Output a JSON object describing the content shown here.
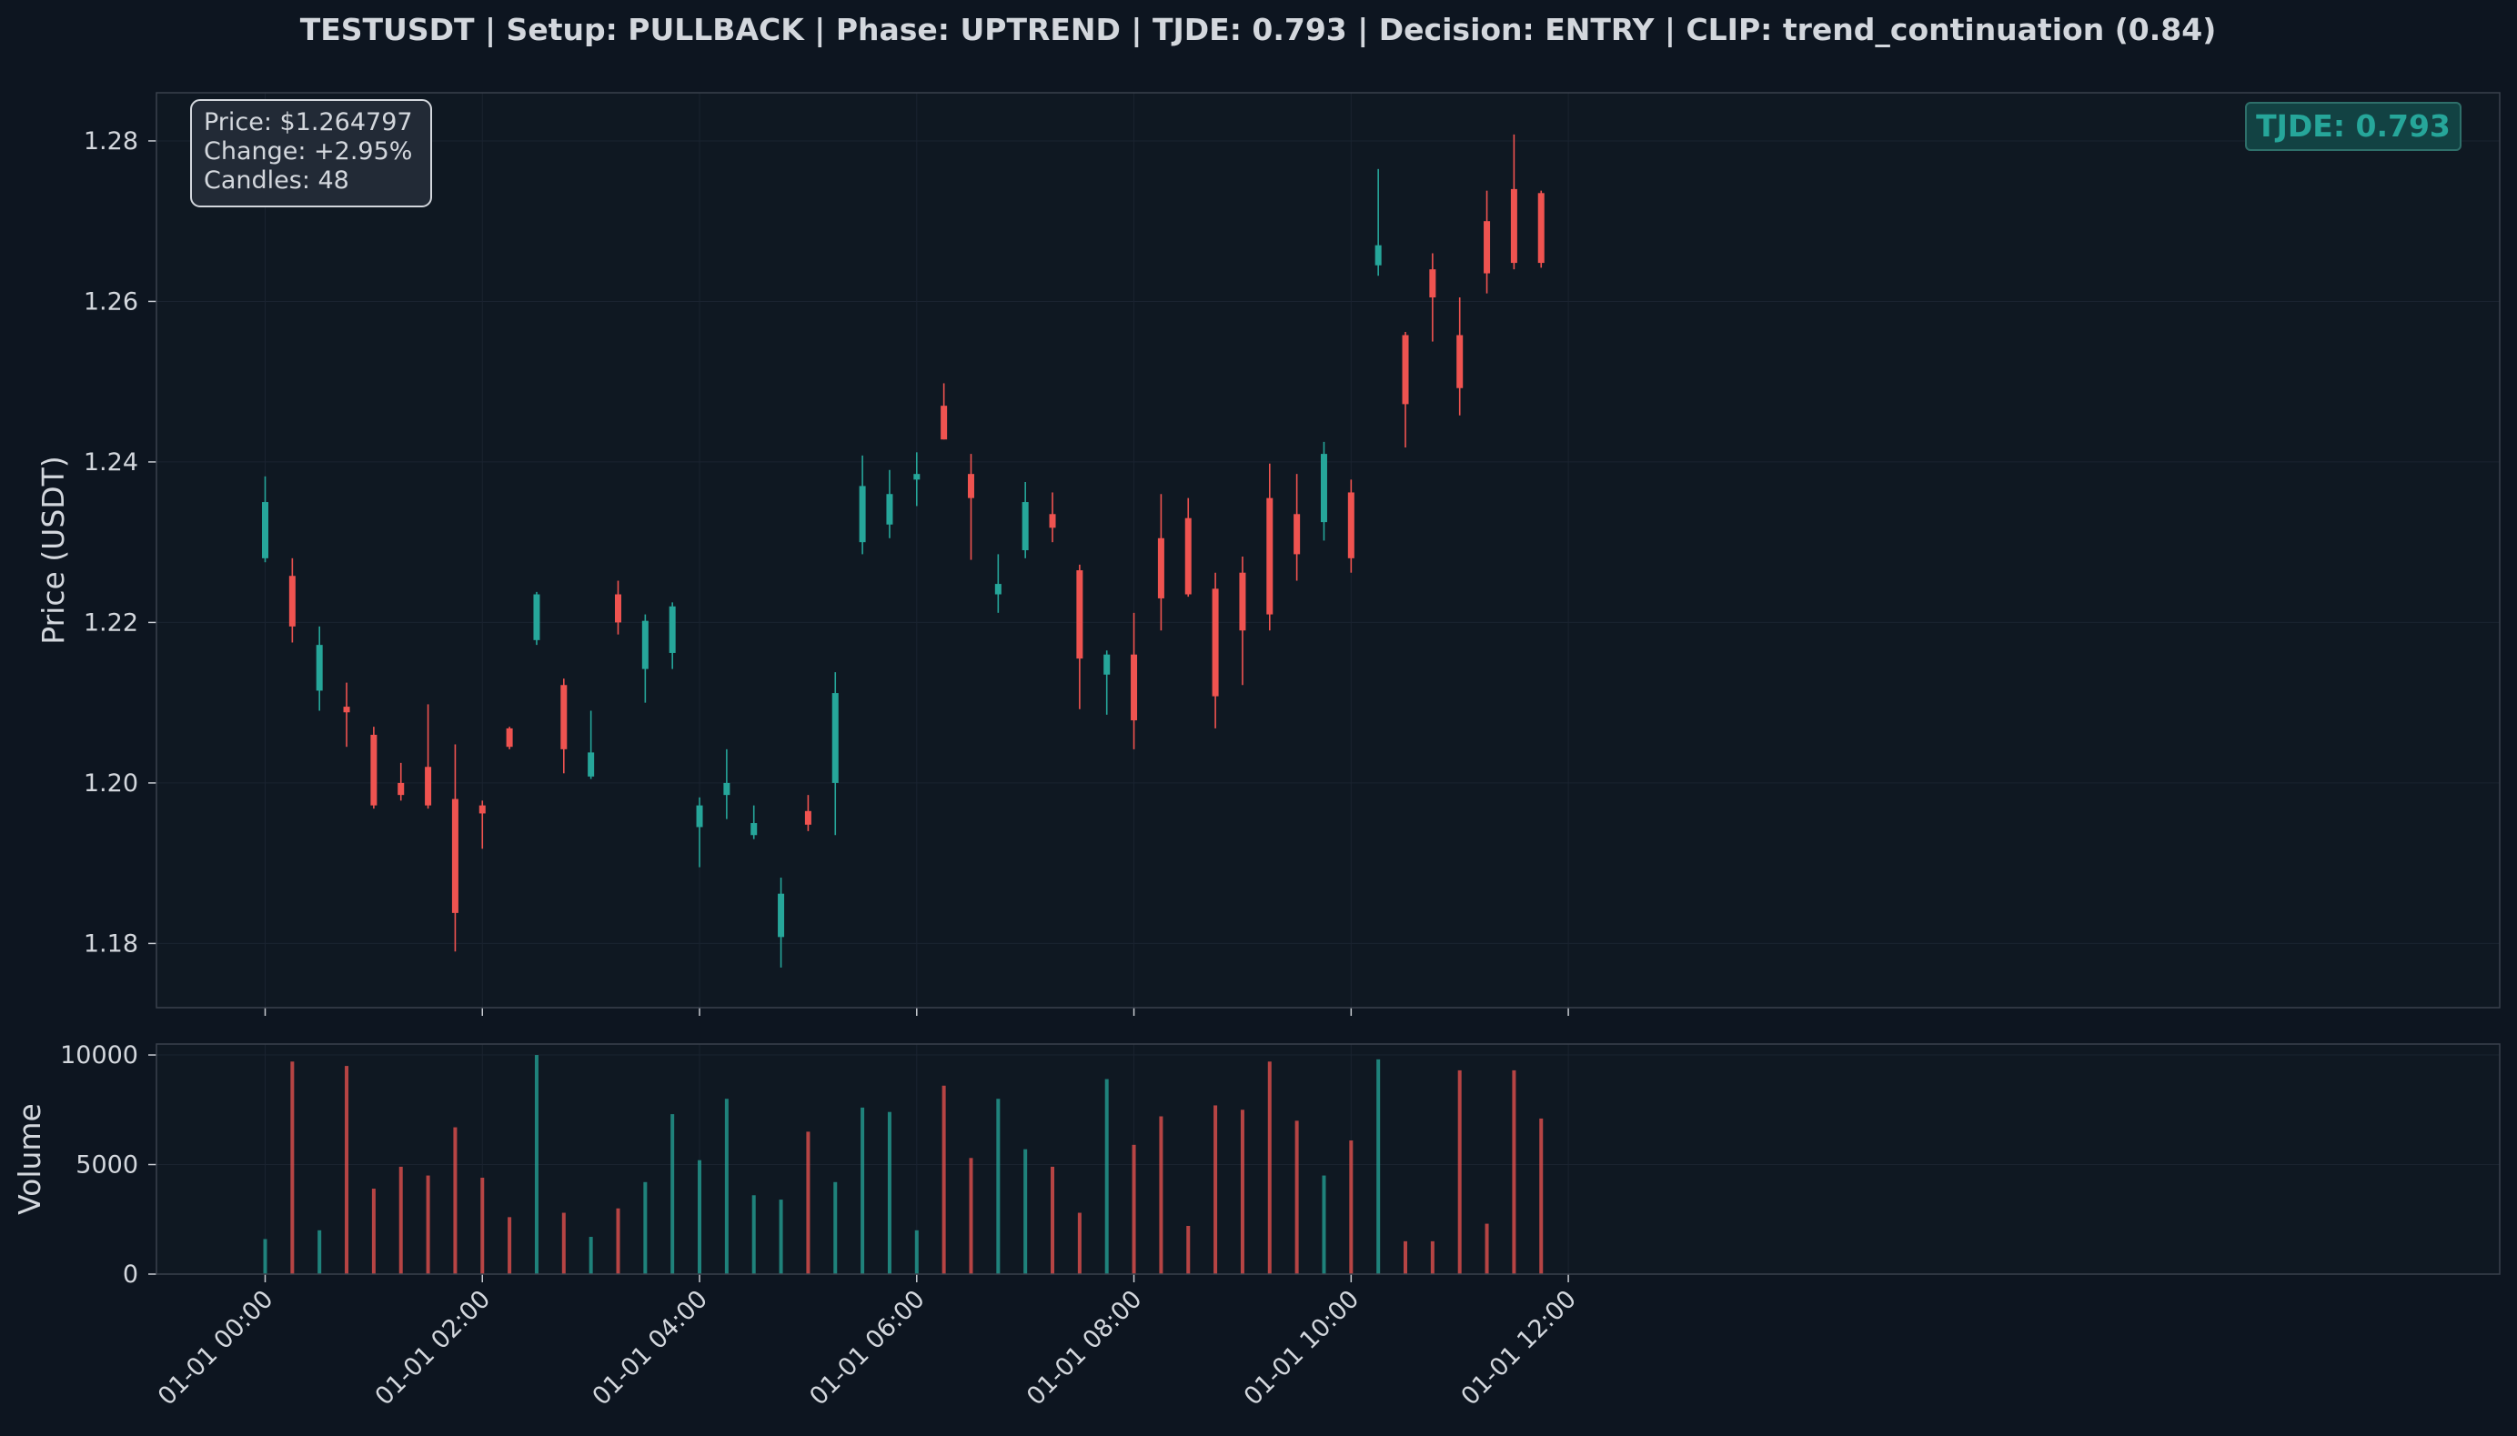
{
  "chart_data": [
    {
      "type": "candlestick",
      "title": "TESTUSDT | Setup: PULLBACK | Phase: UPTREND | TJDE: 0.793 | Decision: ENTRY | CLIP: trend_continuation (0.84)",
      "ylabel": "Price (USDT)",
      "ylim": [
        1.172,
        1.286
      ],
      "yticks": [
        1.18,
        1.2,
        1.22,
        1.24,
        1.26,
        1.28
      ],
      "ytick_labels": [
        "1.18",
        "1.20",
        "1.22",
        "1.24",
        "1.26",
        "1.28"
      ],
      "xlim_minutes": [
        -18,
        785
      ],
      "grid": true,
      "info_box": {
        "lines": [
          "Price: $1.264797",
          "Change: +2.95%",
          "Candles: 48"
        ],
        "placement": "top-left"
      },
      "badge": {
        "text": "TJDE: 0.793",
        "placement": "top-right"
      },
      "colors": {
        "up": "#26a69a",
        "down": "#ef5350",
        "background": "#0d1520",
        "text": "#d3d7dd",
        "grid": "#1a2330",
        "spine": "#3a414c"
      },
      "candles": [
        {
          "t": "01-01 00:00",
          "o": 1.228,
          "h": 1.2382,
          "l": 1.2275,
          "c": 1.235
        },
        {
          "t": "01-01 00:15",
          "o": 1.2258,
          "h": 1.228,
          "l": 1.2175,
          "c": 1.2195
        },
        {
          "t": "01-01 00:30",
          "o": 1.2115,
          "h": 1.2195,
          "l": 1.209,
          "c": 1.2172
        },
        {
          "t": "01-01 00:45",
          "o": 1.2095,
          "h": 1.2125,
          "l": 1.2045,
          "c": 1.2088
        },
        {
          "t": "01-01 01:00",
          "o": 1.206,
          "h": 1.207,
          "l": 1.1968,
          "c": 1.1972
        },
        {
          "t": "01-01 01:15",
          "o": 1.2,
          "h": 1.2025,
          "l": 1.1978,
          "c": 1.1985
        },
        {
          "t": "01-01 01:30",
          "o": 1.202,
          "h": 1.2098,
          "l": 1.1968,
          "c": 1.1972
        },
        {
          "t": "01-01 01:45",
          "o": 1.198,
          "h": 1.2048,
          "l": 1.179,
          "c": 1.1838
        },
        {
          "t": "01-01 02:00",
          "o": 1.1972,
          "h": 1.1978,
          "l": 1.1918,
          "c": 1.1962
        },
        {
          "t": "01-01 02:15",
          "o": 1.2068,
          "h": 1.207,
          "l": 1.2042,
          "c": 1.2045
        },
        {
          "t": "01-01 02:30",
          "o": 1.2178,
          "h": 1.2238,
          "l": 1.2172,
          "c": 1.2235
        },
        {
          "t": "01-01 02:45",
          "o": 1.2122,
          "h": 1.213,
          "l": 1.2012,
          "c": 1.2042
        },
        {
          "t": "01-01 03:00",
          "o": 1.2008,
          "h": 1.209,
          "l": 1.2005,
          "c": 1.2038
        },
        {
          "t": "01-01 03:15",
          "o": 1.2235,
          "h": 1.2252,
          "l": 1.2185,
          "c": 1.22
        },
        {
          "t": "01-01 03:30",
          "o": 1.2142,
          "h": 1.221,
          "l": 1.21,
          "c": 1.2202
        },
        {
          "t": "01-01 03:45",
          "o": 1.2162,
          "h": 1.2225,
          "l": 1.2142,
          "c": 1.222
        },
        {
          "t": "01-01 04:00",
          "o": 1.1945,
          "h": 1.1982,
          "l": 1.1895,
          "c": 1.1972
        },
        {
          "t": "01-01 04:15",
          "o": 1.1985,
          "h": 1.2042,
          "l": 1.1955,
          "c": 1.2
        },
        {
          "t": "01-01 04:30",
          "o": 1.1935,
          "h": 1.1972,
          "l": 1.193,
          "c": 1.195
        },
        {
          "t": "01-01 04:45",
          "o": 1.1808,
          "h": 1.1882,
          "l": 1.177,
          "c": 1.1862
        },
        {
          "t": "01-01 05:00",
          "o": 1.1965,
          "h": 1.1985,
          "l": 1.194,
          "c": 1.1948
        },
        {
          "t": "01-01 05:15",
          "o": 1.2,
          "h": 1.2138,
          "l": 1.1935,
          "c": 1.2112
        },
        {
          "t": "01-01 05:30",
          "o": 1.23,
          "h": 1.2408,
          "l": 1.2285,
          "c": 1.237
        },
        {
          "t": "01-01 05:45",
          "o": 1.2322,
          "h": 1.239,
          "l": 1.2305,
          "c": 1.236
        },
        {
          "t": "01-01 06:00",
          "o": 1.2378,
          "h": 1.2412,
          "l": 1.2345,
          "c": 1.2385
        },
        {
          "t": "01-01 06:15",
          "o": 1.247,
          "h": 1.2498,
          "l": 1.2428,
          "c": 1.2428
        },
        {
          "t": "01-01 06:30",
          "o": 1.2385,
          "h": 1.241,
          "l": 1.2278,
          "c": 1.2355
        },
        {
          "t": "01-01 06:45",
          "o": 1.2235,
          "h": 1.2285,
          "l": 1.2212,
          "c": 1.2248
        },
        {
          "t": "01-01 07:00",
          "o": 1.229,
          "h": 1.2375,
          "l": 1.228,
          "c": 1.235
        },
        {
          "t": "01-01 07:15",
          "o": 1.2335,
          "h": 1.2362,
          "l": 1.23,
          "c": 1.2318
        },
        {
          "t": "01-01 07:30",
          "o": 1.2265,
          "h": 1.2272,
          "l": 1.2092,
          "c": 1.2155
        },
        {
          "t": "01-01 07:45",
          "o": 1.2135,
          "h": 1.2165,
          "l": 1.2085,
          "c": 1.216
        },
        {
          "t": "01-01 08:00",
          "o": 1.216,
          "h": 1.2212,
          "l": 1.2042,
          "c": 1.2078
        },
        {
          "t": "01-01 08:15",
          "o": 1.2305,
          "h": 1.236,
          "l": 1.219,
          "c": 1.223
        },
        {
          "t": "01-01 08:30",
          "o": 1.233,
          "h": 1.2355,
          "l": 1.2232,
          "c": 1.2235
        },
        {
          "t": "01-01 08:45",
          "o": 1.2242,
          "h": 1.2262,
          "l": 1.2068,
          "c": 1.2108
        },
        {
          "t": "01-01 09:00",
          "o": 1.2262,
          "h": 1.2282,
          "l": 1.2122,
          "c": 1.219
        },
        {
          "t": "01-01 09:15",
          "o": 1.2355,
          "h": 1.2398,
          "l": 1.219,
          "c": 1.221
        },
        {
          "t": "01-01 09:30",
          "o": 1.2335,
          "h": 1.2385,
          "l": 1.2252,
          "c": 1.2285
        },
        {
          "t": "01-01 09:45",
          "o": 1.2325,
          "h": 1.2425,
          "l": 1.2302,
          "c": 1.241
        },
        {
          "t": "01-01 10:00",
          "o": 1.2362,
          "h": 1.2378,
          "l": 1.2262,
          "c": 1.228
        },
        {
          "t": "01-01 10:15",
          "o": 1.2645,
          "h": 1.2765,
          "l": 1.2632,
          "c": 1.267
        },
        {
          "t": "01-01 10:30",
          "o": 1.2558,
          "h": 1.2562,
          "l": 1.2418,
          "c": 1.2472
        },
        {
          "t": "01-01 10:45",
          "o": 1.264,
          "h": 1.266,
          "l": 1.255,
          "c": 1.2605
        },
        {
          "t": "01-01 11:00",
          "o": 1.2558,
          "h": 1.2605,
          "l": 1.2458,
          "c": 1.2492
        },
        {
          "t": "01-01 11:15",
          "o": 1.27,
          "h": 1.2738,
          "l": 1.261,
          "c": 1.2635
        },
        {
          "t": "01-01 11:30",
          "o": 1.274,
          "h": 1.2808,
          "l": 1.264,
          "c": 1.2648
        },
        {
          "t": "01-01 11:45",
          "o": 1.2735,
          "h": 1.2738,
          "l": 1.2642,
          "c": 1.2648
        }
      ]
    },
    {
      "type": "bar",
      "ylabel": "Volume",
      "ylim": [
        0,
        10500
      ],
      "yticks": [
        0,
        5000,
        10000
      ],
      "ytick_labels": [
        "0",
        "5000",
        "10000"
      ],
      "xticks_minutes": [
        0,
        120,
        240,
        360,
        480,
        600,
        720
      ],
      "xtick_labels": [
        "01-01 00:00",
        "01-01 02:00",
        "01-01 04:00",
        "01-01 06:00",
        "01-01 08:00",
        "01-01 10:00",
        "01-01 12:00"
      ],
      "values": [
        1600,
        9700,
        2000,
        9500,
        3900,
        4900,
        4500,
        6700,
        4400,
        2600,
        10000,
        2800,
        1700,
        3000,
        4200,
        7300,
        5200,
        8000,
        3600,
        3400,
        6500,
        4200,
        7600,
        7400,
        2000,
        8600,
        5300,
        8000,
        5700,
        4900,
        2800,
        8900,
        5900,
        7200,
        2200,
        7700,
        7500,
        9700,
        7000,
        4500,
        6100,
        9800,
        1500,
        1500,
        9300,
        2300,
        9300,
        7100
      ],
      "grid": true
    }
  ]
}
